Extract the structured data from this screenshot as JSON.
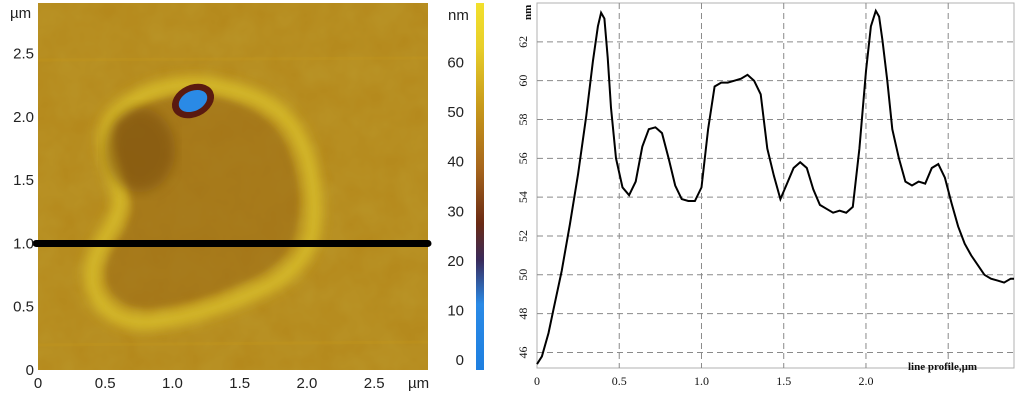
{
  "afm_image": {
    "x_unit": "µm",
    "y_unit": "µm",
    "x_ticks": [
      "0",
      "0.5",
      "1.0",
      "1.5",
      "2.0",
      "2.5"
    ],
    "y_ticks": [
      "0",
      "0.5",
      "1.0",
      "1.5",
      "2.0",
      "2.5"
    ],
    "x_range": [
      0,
      2.9
    ],
    "y_range": [
      0,
      2.9
    ],
    "scan_line_y": 1.0,
    "colorbar": {
      "unit": "nm",
      "ticks": [
        "0",
        "10",
        "20",
        "30",
        "40",
        "50",
        "60"
      ],
      "range": [
        -2,
        72
      ],
      "colors": [
        "#1e7fe0",
        "#6a2a14",
        "#c89a1a",
        "#f2e02c"
      ]
    }
  },
  "chart_data": {
    "type": "line",
    "title": "",
    "xlabel": "line profile,µm",
    "ylabel": "nm",
    "xlim": [
      0,
      2.9
    ],
    "ylim": [
      45.2,
      64
    ],
    "x_ticks": [
      "0",
      "0.5",
      "1.0",
      "1.5",
      "2.0"
    ],
    "y_ticks": [
      "46",
      "48",
      "50",
      "52",
      "54",
      "56",
      "58",
      "60",
      "62"
    ],
    "grid": true,
    "series": [
      {
        "x": [
          0,
          0.03,
          0.07,
          0.1,
          0.15,
          0.2,
          0.25,
          0.3,
          0.34,
          0.37,
          0.39,
          0.41,
          0.43,
          0.45,
          0.48,
          0.52,
          0.56,
          0.6,
          0.64,
          0.68,
          0.72,
          0.76,
          0.8,
          0.84,
          0.88,
          0.92,
          0.96,
          1.0,
          1.04,
          1.08,
          1.12,
          1.16,
          1.2,
          1.24,
          1.28,
          1.32,
          1.36,
          1.4,
          1.44,
          1.48,
          1.52,
          1.56,
          1.6,
          1.64,
          1.68,
          1.72,
          1.76,
          1.8,
          1.84,
          1.88,
          1.92,
          1.96,
          2.0,
          2.03,
          2.06,
          2.08,
          2.1,
          2.13,
          2.16,
          2.2,
          2.24,
          2.28,
          2.32,
          2.36,
          2.4,
          2.44,
          2.48,
          2.52,
          2.56,
          2.6,
          2.64,
          2.68,
          2.72,
          2.76,
          2.8,
          2.84,
          2.88,
          2.9
        ],
        "y": [
          45.4,
          45.8,
          47,
          48.2,
          50.2,
          52.6,
          55.2,
          58.2,
          61,
          62.8,
          63.5,
          63.2,
          61.2,
          58.6,
          56,
          54.5,
          54.1,
          54.8,
          56.6,
          57.5,
          57.6,
          57.3,
          56,
          54.6,
          53.9,
          53.8,
          53.8,
          54.5,
          57.5,
          59.7,
          59.9,
          59.9,
          60.0,
          60.1,
          60.3,
          60.0,
          59.3,
          56.5,
          55.1,
          53.9,
          54.7,
          55.5,
          55.8,
          55.5,
          54.4,
          53.6,
          53.4,
          53.2,
          53.3,
          53.2,
          53.5,
          56.5,
          60.5,
          62.8,
          63.6,
          63.3,
          62.1,
          60.0,
          57.5,
          56.0,
          54.8,
          54.6,
          54.8,
          54.7,
          55.5,
          55.7,
          55.0,
          53.7,
          52.5,
          51.6,
          51.0,
          50.5,
          50.0,
          49.8,
          49.7,
          49.6,
          49.8,
          49.8
        ]
      }
    ]
  }
}
